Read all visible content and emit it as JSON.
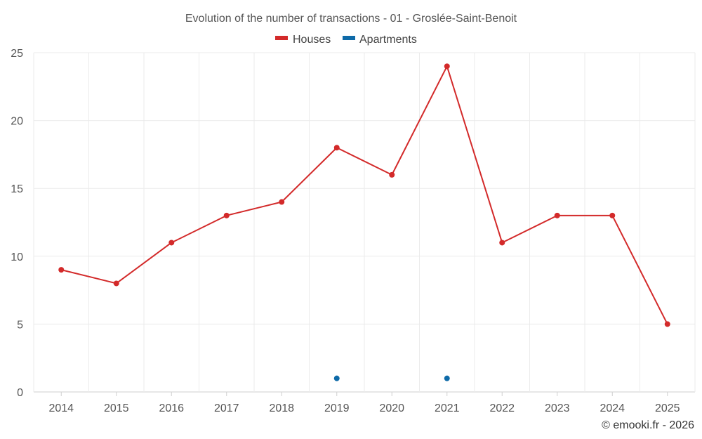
{
  "chart_data": {
    "type": "line",
    "title": "Evolution of the number of transactions - 01 - Groslée-Saint-Benoit",
    "categories": [
      "2014",
      "2015",
      "2016",
      "2017",
      "2018",
      "2019",
      "2020",
      "2021",
      "2022",
      "2023",
      "2024",
      "2025"
    ],
    "series": [
      {
        "name": "Houses",
        "color": "#d32a2a",
        "values": [
          9,
          8,
          11,
          13,
          14,
          18,
          16,
          24,
          11,
          13,
          13,
          5
        ]
      },
      {
        "name": "Apartments",
        "color": "#0e6aa8",
        "values": [
          null,
          null,
          null,
          null,
          null,
          1,
          null,
          1,
          null,
          null,
          null,
          null
        ]
      }
    ],
    "yticks": [
      "0",
      "5",
      "10",
      "15",
      "20",
      "25"
    ],
    "ylim": [
      0,
      25
    ],
    "xlabel": "",
    "ylabel": "",
    "grid": true,
    "legend": "top-center"
  },
  "credit": "© emooki.fr - 2026"
}
